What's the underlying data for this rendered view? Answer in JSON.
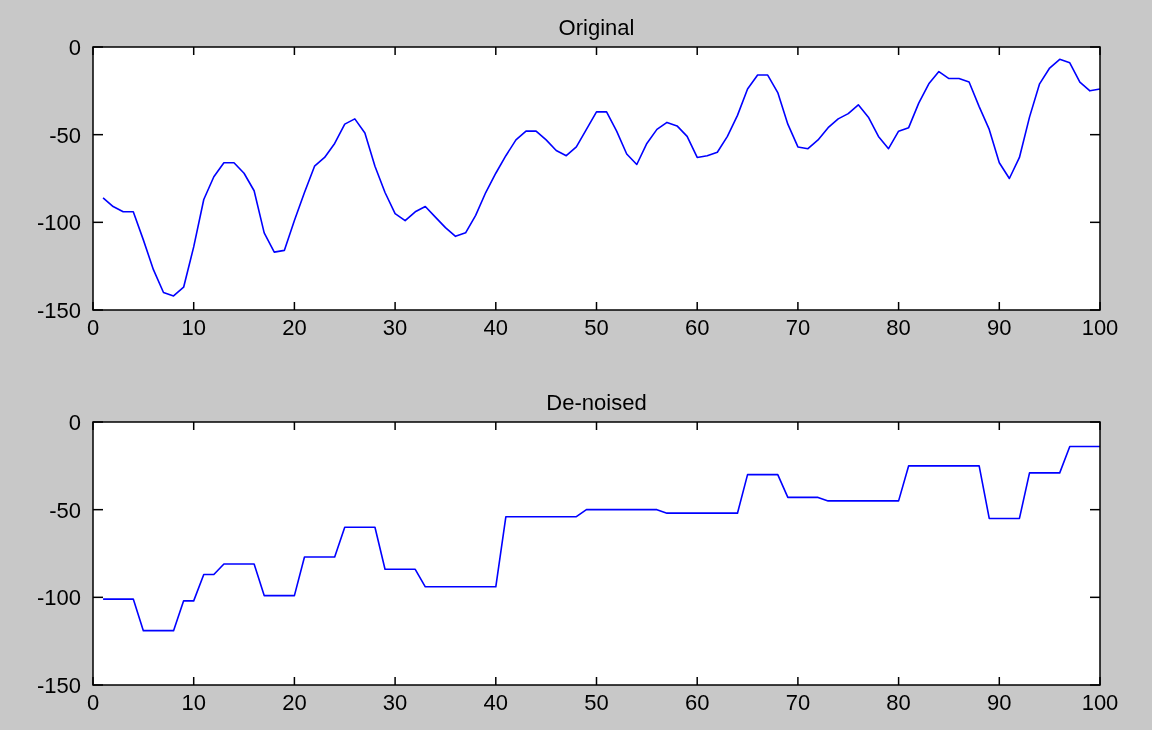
{
  "chart_data": [
    {
      "type": "line",
      "title": "Original",
      "x": [
        1,
        2,
        3,
        4,
        5,
        6,
        7,
        8,
        9,
        10,
        11,
        12,
        13,
        14,
        15,
        16,
        17,
        18,
        19,
        20,
        21,
        22,
        23,
        24,
        25,
        26,
        27,
        28,
        29,
        30,
        31,
        32,
        33,
        34,
        35,
        36,
        37,
        38,
        39,
        40,
        41,
        42,
        43,
        44,
        45,
        46,
        47,
        48,
        49,
        50,
        51,
        52,
        53,
        54,
        55,
        56,
        57,
        58,
        59,
        60,
        61,
        62,
        63,
        64,
        65,
        66,
        67,
        68,
        69,
        70,
        71,
        72,
        73,
        74,
        75,
        76,
        77,
        78,
        79,
        80,
        81,
        82,
        83,
        84,
        85,
        86,
        87,
        88,
        89,
        90,
        91,
        92,
        93,
        94,
        95,
        96,
        97,
        98,
        99,
        100
      ],
      "series": [
        {
          "color": "#0000ff",
          "values": [
            -86,
            -91,
            -94,
            -94,
            -110,
            -127,
            -140,
            -142,
            -137,
            -114,
            -87,
            -74,
            -66,
            -66,
            -72,
            -82,
            -106,
            -117,
            -116,
            -99,
            -83,
            -68,
            -63,
            -55,
            -44,
            -41,
            -49,
            -68,
            -83,
            -95,
            -99,
            -94,
            -91,
            -97,
            -103,
            -108,
            -106,
            -96,
            -83,
            -72,
            -62,
            -53,
            -48,
            -48,
            -53,
            -59,
            -62,
            -57,
            -47,
            -37,
            -37,
            -48,
            -61,
            -67,
            -55,
            -47,
            -43,
            -45,
            -51,
            -63,
            -62,
            -60,
            -51,
            -39,
            -24,
            -16,
            -16,
            -26,
            -44,
            -57,
            -58,
            -53,
            -46,
            -41,
            -38,
            -33,
            -40,
            -51,
            -58,
            -48,
            -46,
            -32,
            -21,
            -14,
            -18,
            -18,
            -20,
            -34,
            -47,
            -66,
            -75,
            -63,
            -40,
            -21,
            -12,
            -7,
            -9,
            -20,
            -25,
            -24
          ]
        }
      ],
      "xlim": [
        0,
        100
      ],
      "xticks": [
        0,
        10,
        20,
        30,
        40,
        50,
        60,
        70,
        80,
        90,
        100
      ],
      "ylim": [
        -150,
        0
      ],
      "yticks": [
        -150,
        -100,
        -50,
        0
      ]
    },
    {
      "type": "line",
      "title": "De-noised",
      "x": [
        1,
        2,
        3,
        4,
        5,
        6,
        7,
        8,
        9,
        10,
        11,
        12,
        13,
        14,
        15,
        16,
        17,
        18,
        19,
        20,
        21,
        22,
        23,
        24,
        25,
        26,
        27,
        28,
        29,
        30,
        31,
        32,
        33,
        34,
        35,
        36,
        37,
        38,
        39,
        40,
        41,
        42,
        43,
        44,
        45,
        46,
        47,
        48,
        49,
        50,
        51,
        52,
        53,
        54,
        55,
        56,
        57,
        58,
        59,
        60,
        61,
        62,
        63,
        64,
        65,
        66,
        67,
        68,
        69,
        70,
        71,
        72,
        73,
        74,
        75,
        76,
        77,
        78,
        79,
        80,
        81,
        82,
        83,
        84,
        85,
        86,
        87,
        88,
        89,
        90,
        91,
        92,
        93,
        94,
        95,
        96,
        97,
        98,
        99,
        100
      ],
      "series": [
        {
          "color": "#0000ff",
          "values": [
            -101,
            -101,
            -101,
            -101,
            -119,
            -119,
            -119,
            -119,
            -102,
            -102,
            -87,
            -87,
            -81,
            -81,
            -81,
            -81,
            -99,
            -99,
            -99,
            -99,
            -77,
            -77,
            -77,
            -77,
            -60,
            -60,
            -60,
            -60,
            -84,
            -84,
            -84,
            -84,
            -94,
            -94,
            -94,
            -94,
            -94,
            -94,
            -94,
            -94,
            -54,
            -54,
            -54,
            -54,
            -54,
            -54,
            -54,
            -54,
            -50,
            -50,
            -50,
            -50,
            -50,
            -50,
            -50,
            -50,
            -52,
            -52,
            -52,
            -52,
            -52,
            -52,
            -52,
            -52,
            -30,
            -30,
            -30,
            -30,
            -43,
            -43,
            -43,
            -43,
            -45,
            -45,
            -45,
            -45,
            -45,
            -45,
            -45,
            -45,
            -25,
            -25,
            -25,
            -25,
            -25,
            -25,
            -25,
            -25,
            -55,
            -55,
            -55,
            -55,
            -29,
            -29,
            -29,
            -29,
            -14,
            -14,
            -14,
            -14
          ]
        }
      ],
      "xlim": [
        0,
        100
      ],
      "xticks": [
        0,
        10,
        20,
        30,
        40,
        50,
        60,
        70,
        80,
        90,
        100
      ],
      "ylim": [
        -150,
        0
      ],
      "yticks": [
        -150,
        -100,
        -50,
        0
      ]
    }
  ]
}
